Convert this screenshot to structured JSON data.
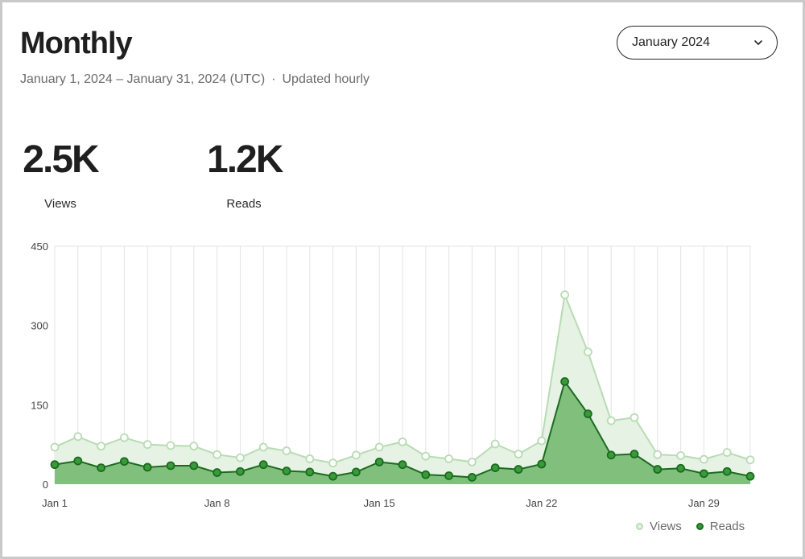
{
  "header": {
    "title": "Monthly",
    "date_range": "January 1, 2024 – January 31, 2024 (UTC)",
    "separator": "·",
    "updated": "Updated hourly"
  },
  "month_select": {
    "value": "January 2024"
  },
  "stats": {
    "views": {
      "value": "2.5K",
      "label": "Views"
    },
    "reads": {
      "value": "1.2K",
      "label": "Reads"
    }
  },
  "legend": {
    "views": "Views",
    "reads": "Reads"
  },
  "colors": {
    "views_line": "#b7dcb3",
    "views_fill": "#e6f2e4",
    "reads_line": "#1a6b1f",
    "reads_fill": "#80c07c",
    "reads_point": "#3a9a3a",
    "grid": "#e4e4e4",
    "axis_text": "#444444"
  },
  "chart_data": {
    "type": "area",
    "x": [
      1,
      2,
      3,
      4,
      5,
      6,
      7,
      8,
      9,
      10,
      11,
      12,
      13,
      14,
      15,
      16,
      17,
      18,
      19,
      20,
      21,
      22,
      23,
      24,
      25,
      26,
      27,
      28,
      29,
      30,
      31
    ],
    "x_tick_labels": [
      "Jan 1",
      "Jan 8",
      "Jan 15",
      "Jan 22",
      "Jan 29"
    ],
    "x_tick_days": [
      1,
      8,
      15,
      22,
      29
    ],
    "ylim": [
      0,
      450
    ],
    "y_ticks": [
      0,
      150,
      300,
      450
    ],
    "grid": "vertical",
    "legend_position": "bottom-right",
    "series": [
      {
        "name": "Views",
        "values": [
          70,
          90,
          72,
          88,
          75,
          73,
          72,
          56,
          50,
          70,
          63,
          48,
          40,
          55,
          70,
          80,
          53,
          48,
          42,
          76,
          57,
          82,
          358,
          250,
          120,
          126,
          56,
          54,
          47,
          60,
          46
        ]
      },
      {
        "name": "Reads",
        "values": [
          37,
          44,
          31,
          43,
          32,
          35,
          35,
          22,
          24,
          37,
          25,
          23,
          15,
          23,
          42,
          37,
          18,
          16,
          13,
          31,
          28,
          38,
          194,
          133,
          55,
          57,
          28,
          30,
          20,
          24,
          15
        ]
      }
    ]
  }
}
